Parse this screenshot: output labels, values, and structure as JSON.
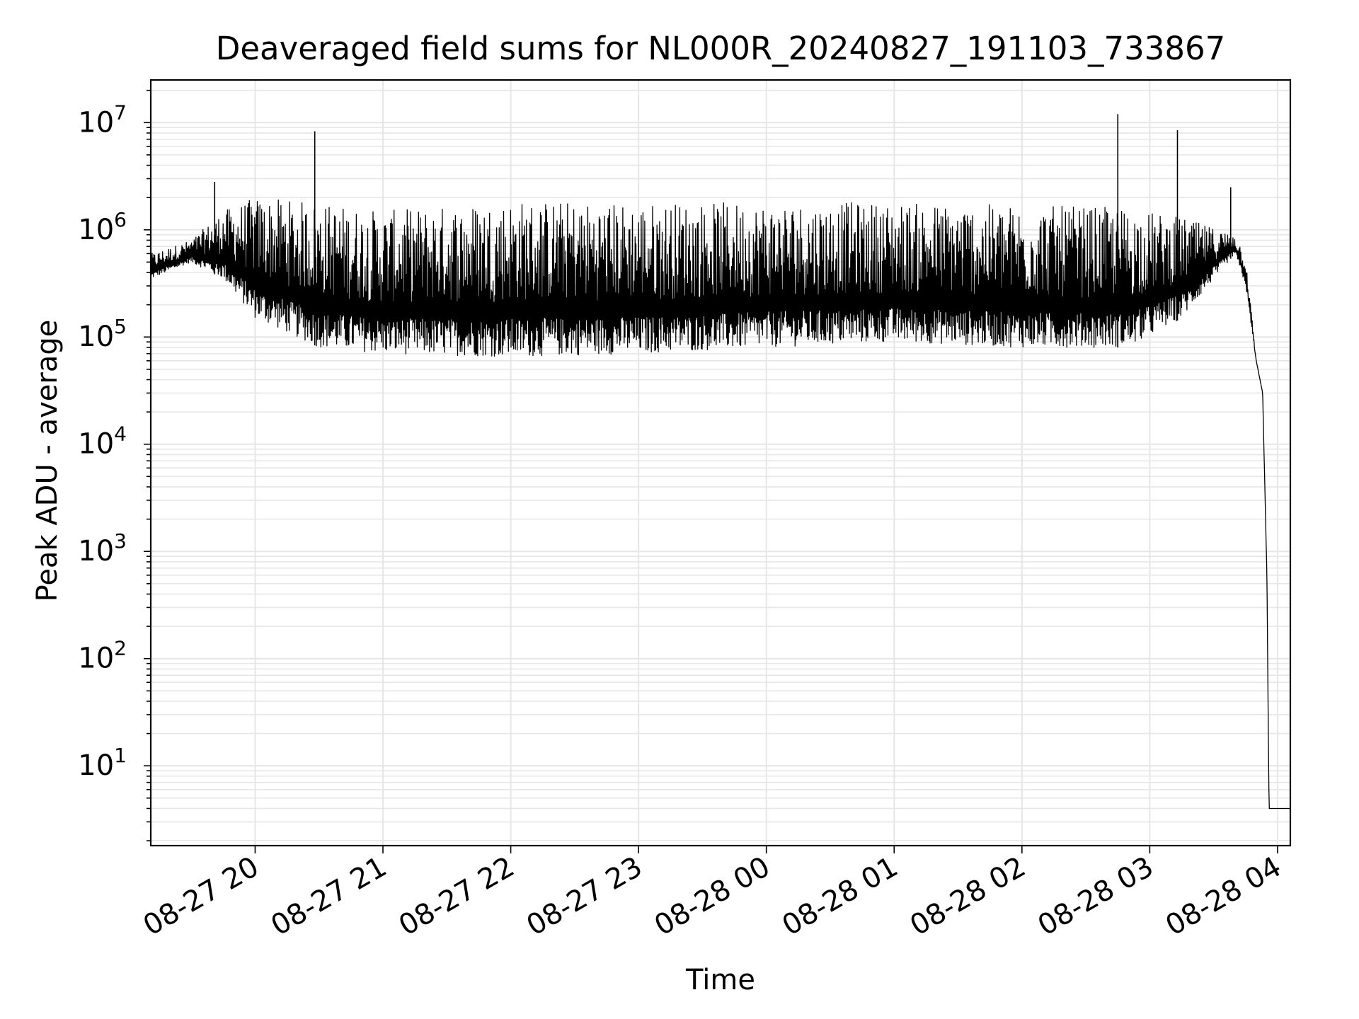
{
  "chart_data": {
    "type": "line",
    "title": "Deaveraged field sums for NL000R_20240827_191103_733867",
    "xlabel": "Time",
    "ylabel": "Peak ADU - average",
    "yscale": "log",
    "ylim": [
      1.8,
      25000000
    ],
    "xlim": [
      "2024-08-27 19:11",
      "2024-08-28 04:06"
    ],
    "x_tick_labels": [
      "08-27 20",
      "08-27 21",
      "08-27 22",
      "08-27 23",
      "08-28 00",
      "08-28 01",
      "08-28 02",
      "08-28 03",
      "08-28 04"
    ],
    "y_tick_labels": [
      {
        "base": "10",
        "exp": "1"
      },
      {
        "base": "10",
        "exp": "2"
      },
      {
        "base": "10",
        "exp": "3"
      },
      {
        "base": "10",
        "exp": "4"
      },
      {
        "base": "10",
        "exp": "5"
      },
      {
        "base": "10",
        "exp": "6"
      },
      {
        "base": "10",
        "exp": "7"
      }
    ],
    "grid": true,
    "line_color": "#000000",
    "grid_color": "#e6e6e6",
    "series": [
      {
        "description": "approximate envelope of the signal",
        "x": [
          "2024-08-27 19:11",
          "2024-08-27 19:30",
          "2024-08-27 19:45",
          "2024-08-27 20:00",
          "2024-08-27 20:30",
          "2024-08-27 21:00",
          "2024-08-27 22:00",
          "2024-08-27 23:00",
          "2024-08-28 00:00",
          "2024-08-28 01:00",
          "2024-08-28 02:00",
          "2024-08-28 02:50",
          "2024-08-28 03:15",
          "2024-08-28 03:40",
          "2024-08-28 03:45",
          "2024-08-28 03:50",
          "2024-08-28 03:53",
          "2024-08-28 03:55",
          "2024-08-28 03:56",
          "2024-08-28 04:06"
        ],
        "y_low": [
          350000,
          500000,
          350000,
          150000,
          80000,
          70000,
          65000,
          70000,
          80000,
          90000,
          80000,
          80000,
          150000,
          600000,
          300000,
          60000,
          30000,
          600,
          4,
          4
        ],
        "y_high": [
          600000,
          800000,
          1500000,
          2000000,
          1800000,
          1500000,
          1900000,
          1800000,
          1800000,
          1800000,
          1700000,
          1600000,
          1300000,
          900000,
          600000,
          60000,
          30000,
          600,
          4,
          4
        ]
      }
    ],
    "spikes": [
      {
        "x": "2024-08-27 19:41",
        "y": 2800000
      },
      {
        "x": "2024-08-27 20:28",
        "y": 8300000
      },
      {
        "x": "2024-08-28 02:45",
        "y": 12000000
      },
      {
        "x": "2024-08-28 03:13",
        "y": 8500000
      },
      {
        "x": "2024-08-28 03:38",
        "y": 2500000
      }
    ]
  }
}
